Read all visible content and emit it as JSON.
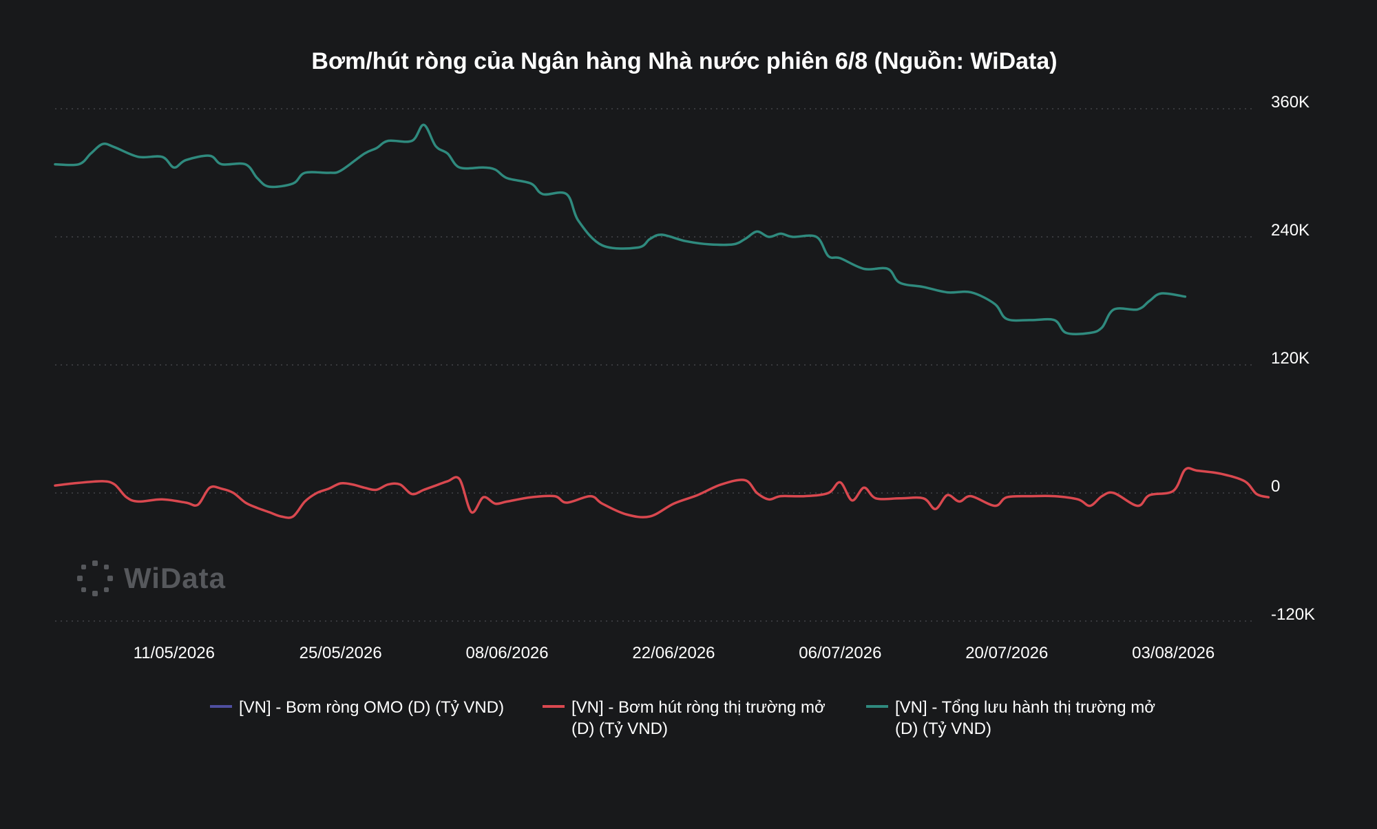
{
  "chart_data": {
    "type": "line",
    "title": "Bơm/hút ròng của Ngân hàng Nhà nước phiên 6/8 (Nguồn: WiData)",
    "y_axis": {
      "position": "right",
      "ylim": [
        -120000,
        360000
      ],
      "ticks": [
        360000,
        240000,
        120000,
        0,
        -120000
      ],
      "tick_labels": [
        "360K",
        "240K",
        "120K",
        "0",
        "-120K"
      ]
    },
    "x_axis": {
      "xlim": [
        "2026-05-01",
        "2026-08-06"
      ],
      "tick_dates": [
        "2026-05-11",
        "2026-05-25",
        "2026-06-08",
        "2026-06-22",
        "2026-07-06",
        "2026-07-20",
        "2026-08-03"
      ],
      "tick_labels": [
        "11/05/2026",
        "25/05/2026",
        "08/06/2026",
        "22/06/2026",
        "06/07/2026",
        "20/07/2026",
        "03/08/2026"
      ]
    },
    "grid": true,
    "legend_position": "bottom",
    "series": [
      {
        "name": "[VN] - Bơm ròng OMO (D) (Tỷ VND)",
        "color": "#4f4fa0",
        "points": []
      },
      {
        "name": "[VN] - Bơm hút ròng thị trường mở (D) (Tỷ VND)",
        "color": "#d9484f",
        "points": [
          [
            "2026-05-01",
            7000
          ],
          [
            "2026-05-03",
            9500
          ],
          [
            "2026-05-05",
            11000
          ],
          [
            "2026-05-06",
            8000
          ],
          [
            "2026-05-07",
            -4000
          ],
          [
            "2026-05-08",
            -8000
          ],
          [
            "2026-05-10",
            -6000
          ],
          [
            "2026-05-12",
            -9000
          ],
          [
            "2026-05-13",
            -11000
          ],
          [
            "2026-05-14",
            5000
          ],
          [
            "2026-05-15",
            4000
          ],
          [
            "2026-05-16",
            0
          ],
          [
            "2026-05-17",
            -9000
          ],
          [
            "2026-05-18",
            -14000
          ],
          [
            "2026-05-19",
            -18000
          ],
          [
            "2026-05-20",
            -22000
          ],
          [
            "2026-05-21",
            -22000
          ],
          [
            "2026-05-22",
            -8000
          ],
          [
            "2026-05-23",
            0
          ],
          [
            "2026-05-24",
            4000
          ],
          [
            "2026-05-25",
            9000
          ],
          [
            "2026-05-26",
            8000
          ],
          [
            "2026-05-27",
            5000
          ],
          [
            "2026-05-28",
            3000
          ],
          [
            "2026-05-29",
            8000
          ],
          [
            "2026-05-30",
            8000
          ],
          [
            "2026-05-31",
            -1000
          ],
          [
            "2026-06-01",
            3000
          ],
          [
            "2026-06-02",
            7000
          ],
          [
            "2026-06-03",
            11000
          ],
          [
            "2026-06-04",
            13000
          ],
          [
            "2026-06-05",
            -18000
          ],
          [
            "2026-06-06",
            -4000
          ],
          [
            "2026-06-07",
            -10000
          ],
          [
            "2026-06-08",
            -8000
          ],
          [
            "2026-06-10",
            -4000
          ],
          [
            "2026-06-12",
            -3000
          ],
          [
            "2026-06-13",
            -9000
          ],
          [
            "2026-06-15",
            -3000
          ],
          [
            "2026-06-16",
            -10000
          ],
          [
            "2026-06-18",
            -20000
          ],
          [
            "2026-06-20",
            -22000
          ],
          [
            "2026-06-22",
            -10000
          ],
          [
            "2026-06-24",
            -2000
          ],
          [
            "2026-06-26",
            8000
          ],
          [
            "2026-06-28",
            12000
          ],
          [
            "2026-06-29",
            0
          ],
          [
            "2026-06-30",
            -6000
          ],
          [
            "2026-07-01",
            -3000
          ],
          [
            "2026-07-03",
            -3000
          ],
          [
            "2026-07-05",
            0
          ],
          [
            "2026-07-06",
            10000
          ],
          [
            "2026-07-07",
            -7000
          ],
          [
            "2026-07-08",
            5000
          ],
          [
            "2026-07-09",
            -5000
          ],
          [
            "2026-07-11",
            -5000
          ],
          [
            "2026-07-13",
            -5000
          ],
          [
            "2026-07-14",
            -15000
          ],
          [
            "2026-07-15",
            -2000
          ],
          [
            "2026-07-16",
            -8000
          ],
          [
            "2026-07-17",
            -3000
          ],
          [
            "2026-07-19",
            -12000
          ],
          [
            "2026-07-20",
            -4000
          ],
          [
            "2026-07-22",
            -3000
          ],
          [
            "2026-07-24",
            -3000
          ],
          [
            "2026-07-26",
            -6000
          ],
          [
            "2026-07-27",
            -12000
          ],
          [
            "2026-07-28",
            -3000
          ],
          [
            "2026-07-29",
            0
          ],
          [
            "2026-07-31",
            -12000
          ],
          [
            "2026-08-01",
            -2000
          ],
          [
            "2026-08-03",
            2000
          ],
          [
            "2026-08-04",
            22000
          ],
          [
            "2026-08-05",
            21000
          ],
          [
            "2026-08-07",
            18000
          ],
          [
            "2026-08-09",
            11000
          ],
          [
            "2026-08-10",
            -1000
          ],
          [
            "2026-08-11",
            -4000
          ]
        ]
      },
      {
        "name": "[VN] - Tổng lưu hành thị trường mở (D) (Tỷ VND)",
        "color": "#2f8a7e",
        "points": [
          [
            "2026-05-01",
            308000
          ],
          [
            "2026-05-03",
            308000
          ],
          [
            "2026-05-04",
            318000
          ],
          [
            "2026-05-05",
            327000
          ],
          [
            "2026-05-06",
            324000
          ],
          [
            "2026-05-08",
            315000
          ],
          [
            "2026-05-10",
            315000
          ],
          [
            "2026-05-11",
            305000
          ],
          [
            "2026-05-12",
            312000
          ],
          [
            "2026-05-14",
            316000
          ],
          [
            "2026-05-15",
            308000
          ],
          [
            "2026-05-17",
            308000
          ],
          [
            "2026-05-18",
            295000
          ],
          [
            "2026-05-19",
            287000
          ],
          [
            "2026-05-21",
            290000
          ],
          [
            "2026-05-22",
            300000
          ],
          [
            "2026-05-24",
            300000
          ],
          [
            "2026-05-25",
            302000
          ],
          [
            "2026-05-27",
            318000
          ],
          [
            "2026-05-28",
            323000
          ],
          [
            "2026-05-29",
            330000
          ],
          [
            "2026-05-31",
            330000
          ],
          [
            "2026-06-01",
            345000
          ],
          [
            "2026-06-02",
            325000
          ],
          [
            "2026-06-03",
            318000
          ],
          [
            "2026-06-04",
            305000
          ],
          [
            "2026-06-06",
            305000
          ],
          [
            "2026-06-07",
            303000
          ],
          [
            "2026-06-08",
            295000
          ],
          [
            "2026-06-10",
            290000
          ],
          [
            "2026-06-11",
            280000
          ],
          [
            "2026-06-13",
            280000
          ],
          [
            "2026-06-14",
            255000
          ],
          [
            "2026-06-16",
            232000
          ],
          [
            "2026-06-19",
            230000
          ],
          [
            "2026-06-20",
            238000
          ],
          [
            "2026-06-21",
            242000
          ],
          [
            "2026-06-23",
            236000
          ],
          [
            "2026-06-25",
            233000
          ],
          [
            "2026-06-27",
            233000
          ],
          [
            "2026-06-28",
            238000
          ],
          [
            "2026-06-29",
            245000
          ],
          [
            "2026-06-30",
            240000
          ],
          [
            "2026-07-01",
            243000
          ],
          [
            "2026-07-02",
            240000
          ],
          [
            "2026-07-04",
            240000
          ],
          [
            "2026-07-05",
            222000
          ],
          [
            "2026-07-06",
            220000
          ],
          [
            "2026-07-08",
            210000
          ],
          [
            "2026-07-10",
            210000
          ],
          [
            "2026-07-11",
            197000
          ],
          [
            "2026-07-13",
            193000
          ],
          [
            "2026-07-15",
            188000
          ],
          [
            "2026-07-17",
            188000
          ],
          [
            "2026-07-19",
            177000
          ],
          [
            "2026-07-20",
            163000
          ],
          [
            "2026-07-22",
            162000
          ],
          [
            "2026-07-24",
            162000
          ],
          [
            "2026-07-25",
            150000
          ],
          [
            "2026-07-27",
            150000
          ],
          [
            "2026-07-28",
            155000
          ],
          [
            "2026-07-29",
            172000
          ],
          [
            "2026-07-31",
            172000
          ],
          [
            "2026-08-01",
            180000
          ],
          [
            "2026-08-02",
            187000
          ],
          [
            "2026-08-04",
            184000
          ]
        ]
      }
    ]
  },
  "watermark": {
    "text": "WiData"
  }
}
